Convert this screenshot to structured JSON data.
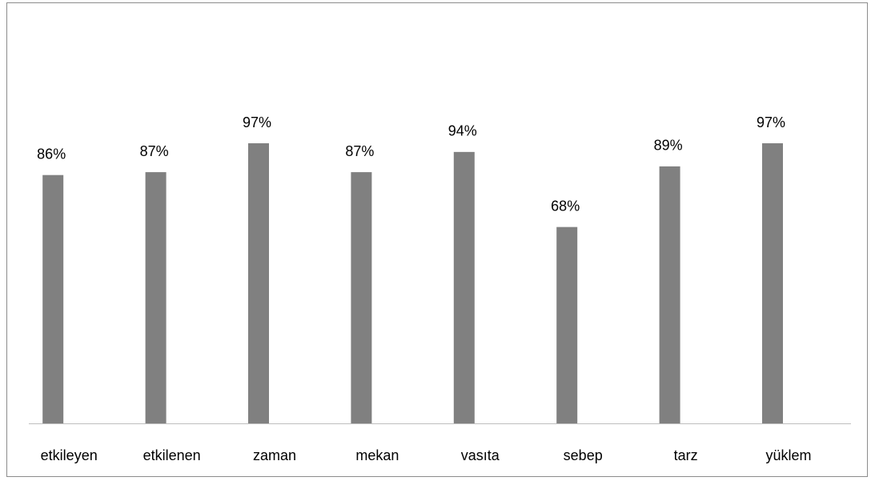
{
  "chart_data": {
    "type": "bar",
    "categories": [
      "etkileyen",
      "etkilenen",
      "zaman",
      "mekan",
      "vasıta",
      "sebep",
      "tarz",
      "yüklem"
    ],
    "values": [
      86,
      87,
      97,
      87,
      94,
      68,
      89,
      97
    ],
    "value_labels": [
      "86%",
      "87%",
      "97%",
      "87%",
      "94%",
      "68%",
      "89%",
      "97%"
    ],
    "color": "#808080"
  }
}
